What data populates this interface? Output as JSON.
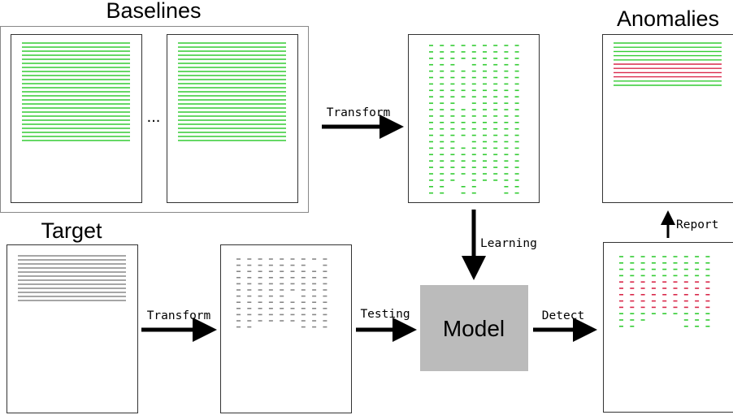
{
  "titles": {
    "baselines": "Baselines",
    "anomalies": "Anomalies",
    "target": "Target"
  },
  "ellipsis": "...",
  "model_label": "Model",
  "edge_labels": {
    "transform_top": "Transform",
    "learning": "Learning",
    "report": "Report",
    "transform_bottom": "Transform",
    "testing": "Testing",
    "detect": "Detect"
  },
  "colors": {
    "normal": "#33cc33",
    "anomaly": "#d9284a",
    "target": "#888888",
    "model_fill": "#bbbbbb",
    "arrow": "#000000"
  },
  "icons": {
    "arrow": "arrow-right-icon"
  }
}
